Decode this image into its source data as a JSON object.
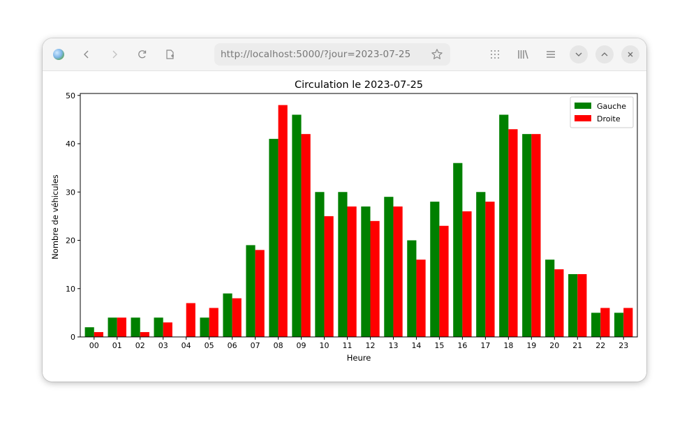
{
  "browser": {
    "url": "http://localhost:5000/?jour=2023-07-25"
  },
  "chart_data": {
    "type": "bar",
    "title": "Circulation le 2023-07-25",
    "xlabel": "Heure",
    "ylabel": "Nombre de véhicules",
    "categories": [
      "00",
      "01",
      "02",
      "03",
      "04",
      "05",
      "06",
      "07",
      "08",
      "09",
      "10",
      "11",
      "12",
      "13",
      "14",
      "15",
      "16",
      "17",
      "18",
      "19",
      "20",
      "21",
      "22",
      "23"
    ],
    "series": [
      {
        "name": "Gauche",
        "color": "#008000",
        "values": [
          2,
          4,
          4,
          4,
          0,
          4,
          9,
          19,
          41,
          46,
          30,
          30,
          27,
          29,
          20,
          28,
          36,
          30,
          46,
          42,
          16,
          13,
          5,
          5
        ]
      },
      {
        "name": "Droite",
        "color": "#ff0000",
        "values": [
          1,
          4,
          1,
          3,
          7,
          6,
          8,
          18,
          48,
          42,
          25,
          27,
          24,
          27,
          16,
          23,
          26,
          28,
          43,
          42,
          14,
          13,
          6,
          6
        ]
      }
    ],
    "ylim": [
      0,
      50.4
    ],
    "yticks": [
      0,
      10,
      20,
      30,
      40,
      50
    ],
    "legend": "top-right",
    "grid": false
  }
}
